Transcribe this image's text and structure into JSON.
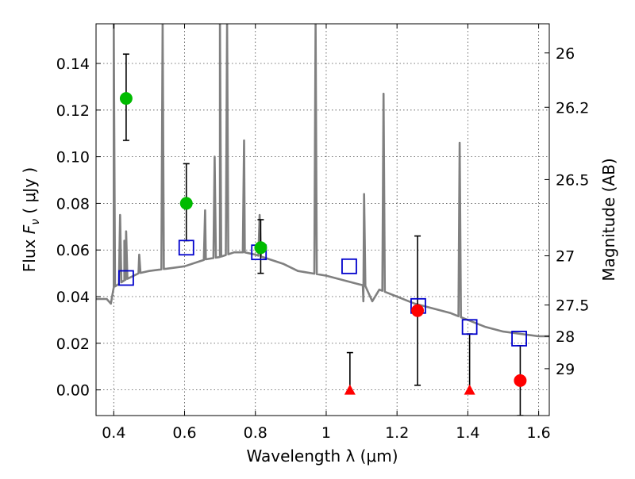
{
  "chart_data": {
    "type": "scatter",
    "xlabel": "Wavelength  λ (μm)",
    "ylabel": "Flux  F_ν  ( μJy )",
    "ylabel_right": "Magnitude (AB)",
    "xlim": [
      0.35,
      1.63
    ],
    "ylim": [
      -0.011,
      0.157
    ],
    "grid": true,
    "x_ticks": [
      0.4,
      0.6,
      0.8,
      1.0,
      1.2,
      1.4,
      1.6
    ],
    "x_tick_labels": [
      "0.4",
      "0.6",
      "0.8",
      "1",
      "1.2",
      "1.4",
      "1.6"
    ],
    "y_ticks": [
      0.0,
      0.02,
      0.04,
      0.06,
      0.08,
      0.1,
      0.12,
      0.14
    ],
    "y_tick_labels": [
      "0.00",
      "0.02",
      "0.04",
      "0.06",
      "0.08",
      "0.10",
      "0.12",
      "0.14"
    ],
    "right_axis": {
      "tick_flux": [
        0.1445,
        0.1212,
        0.0902,
        0.0575,
        0.0364,
        0.023,
        0.0091
      ],
      "tick_labels": [
        "26",
        "26.2",
        "26.5",
        "27",
        "27.5",
        "28",
        "29"
      ]
    },
    "model_spectrum": {
      "color": "#808080",
      "baseline": [
        [
          0.35,
          0.039
        ],
        [
          0.38,
          0.039
        ],
        [
          0.392,
          0.037
        ],
        [
          0.4,
          0.044
        ],
        [
          0.43,
          0.047
        ],
        [
          0.47,
          0.05
        ],
        [
          0.5,
          0.051
        ],
        [
          0.55,
          0.052
        ],
        [
          0.6,
          0.053
        ],
        [
          0.64,
          0.055
        ],
        [
          0.66,
          0.056
        ],
        [
          0.7,
          0.057
        ],
        [
          0.74,
          0.059
        ],
        [
          0.77,
          0.059
        ],
        [
          0.8,
          0.058
        ],
        [
          0.84,
          0.056
        ],
        [
          0.88,
          0.054
        ],
        [
          0.92,
          0.051
        ],
        [
          0.96,
          0.05
        ],
        [
          1.0,
          0.049
        ],
        [
          1.05,
          0.047
        ],
        [
          1.1,
          0.045
        ],
        [
          1.15,
          0.043
        ],
        [
          1.2,
          0.04
        ],
        [
          1.25,
          0.037
        ],
        [
          1.3,
          0.035
        ],
        [
          1.35,
          0.033
        ],
        [
          1.4,
          0.03
        ],
        [
          1.45,
          0.027
        ],
        [
          1.5,
          0.025
        ],
        [
          1.55,
          0.024
        ],
        [
          1.6,
          0.023
        ],
        [
          1.63,
          0.023
        ]
      ],
      "emission_lines": [
        [
          0.4,
          0.157
        ],
        [
          0.418,
          0.075
        ],
        [
          0.43,
          0.064
        ],
        [
          0.435,
          0.068
        ],
        [
          0.472,
          0.058
        ],
        [
          0.538,
          0.157
        ],
        [
          0.658,
          0.077
        ],
        [
          0.685,
          0.1
        ],
        [
          0.7,
          0.157
        ],
        [
          0.72,
          0.157
        ],
        [
          0.768,
          0.107
        ],
        [
          0.812,
          0.075
        ],
        [
          0.97,
          0.157
        ],
        [
          1.107,
          0.084
        ],
        [
          1.162,
          0.127
        ],
        [
          1.377,
          0.106
        ]
      ],
      "broad_features": [
        [
          1.095,
          1.105,
          1.13,
          1.175,
          0.038
        ]
      ]
    },
    "series": [
      {
        "marker": "open-square",
        "color": "#0000cc",
        "points": [
          [
            0.435,
            0.048
          ],
          [
            0.605,
            0.061
          ],
          [
            0.81,
            0.059
          ],
          [
            1.065,
            0.053
          ],
          [
            1.26,
            0.036
          ],
          [
            1.405,
            0.027
          ],
          [
            1.545,
            0.022
          ]
        ]
      },
      {
        "marker": "circle",
        "color": "#00bb00",
        "points": [
          [
            0.435,
            0.125,
            0.107,
            0.144
          ],
          [
            0.605,
            0.08,
            0.064,
            0.097
          ],
          [
            0.815,
            0.061,
            0.05,
            0.073
          ]
        ]
      },
      {
        "marker": "circle",
        "color": "#ff0000",
        "points": [
          [
            1.258,
            0.034,
            0.002,
            0.066
          ],
          [
            1.548,
            0.004,
            -0.011,
            0.019
          ]
        ]
      },
      {
        "marker": "triangle-up",
        "color": "#ff0000",
        "points": [
          [
            1.067,
            0.0,
            null,
            0.016
          ],
          [
            1.405,
            0.0,
            null,
            0.024
          ]
        ]
      }
    ]
  }
}
